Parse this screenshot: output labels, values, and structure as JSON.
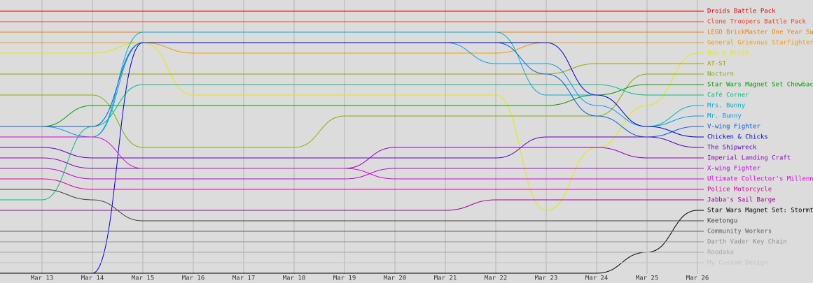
{
  "chart_data": {
    "type": "bump",
    "categories": [
      "Mar 13",
      "Mar 14",
      "Mar 15",
      "Mar 16",
      "Mar 17",
      "Mar 18",
      "Mar 19",
      "Mar 20",
      "Mar 21",
      "Mar 22",
      "Mar 23",
      "Mar 24",
      "Mar 25",
      "Mar 26"
    ],
    "ylim": [
      0,
      26
    ],
    "y_inverted": true,
    "grid": true,
    "series": [
      {
        "name": "Droids Battle Pack",
        "color": "#e00000",
        "values": [
          1,
          1,
          1,
          1,
          1,
          1,
          1,
          1,
          1,
          1,
          1,
          1,
          1,
          1
        ]
      },
      {
        "name": "Clone Troopers Battle Pack",
        "color": "#f04020",
        "values": [
          2,
          2,
          2,
          2,
          2,
          2,
          2,
          2,
          2,
          2,
          2,
          2,
          2,
          2
        ]
      },
      {
        "name": "LEGO BrickMaster One Year Subs",
        "color": "#f08000",
        "values": [
          3,
          3,
          3,
          3,
          3,
          3,
          3,
          3,
          3,
          3,
          3,
          3,
          3,
          3
        ]
      },
      {
        "name": "General Grievous Starfighter",
        "color": "#f0a000",
        "values": [
          4,
          4,
          4,
          5,
          5,
          5,
          5,
          5,
          5,
          5,
          4,
          4,
          4,
          4
        ]
      },
      {
        "name": "Bob & Brick",
        "color": "#e8e800",
        "values": [
          5,
          5,
          4,
          9,
          9,
          9,
          9,
          9,
          9,
          9,
          20,
          14,
          10,
          5
        ]
      },
      {
        "name": "AT-ST",
        "color": "#a0a000",
        "values": [
          7,
          7,
          7,
          7,
          7,
          7,
          7,
          7,
          7,
          7,
          7,
          6,
          6,
          6
        ]
      },
      {
        "name": "Nocturn",
        "color": "#80b000",
        "values": [
          9,
          9,
          14,
          14,
          14,
          14,
          11,
          11,
          11,
          11,
          11,
          11,
          7,
          7
        ]
      },
      {
        "name": "Star Wars Magnet Set Chewbacca",
        "color": "#00a000",
        "values": [
          12,
          10,
          10,
          10,
          10,
          10,
          10,
          10,
          10,
          10,
          10,
          9,
          8,
          8
        ]
      },
      {
        "name": "Café Corner",
        "color": "#00c080",
        "values": [
          19,
          12,
          8,
          8,
          8,
          8,
          8,
          8,
          8,
          8,
          8,
          8,
          9,
          9
        ]
      },
      {
        "name": "Mrs. Bunny",
        "color": "#00b0d0",
        "values": [
          13,
          13,
          3,
          3,
          3,
          3,
          3,
          3,
          3,
          3,
          9,
          9,
          12,
          10
        ]
      },
      {
        "name": "Mr. Bunny",
        "color": "#00a0f0",
        "values": [
          12,
          13,
          4,
          4,
          4,
          4,
          4,
          4,
          4,
          6,
          6,
          10,
          12,
          11
        ]
      },
      {
        "name": "V-wing Fighter",
        "color": "#0060e0",
        "values": [
          12,
          12,
          4,
          4,
          4,
          4,
          4,
          4,
          4,
          4,
          7,
          11,
          13,
          12
        ]
      },
      {
        "name": "Chicken & Chicks",
        "color": "#0000e0",
        "values": [
          26,
          26,
          4,
          4,
          4,
          4,
          4,
          4,
          4,
          4,
          4,
          9,
          12,
          13
        ]
      },
      {
        "name": "The Shipwreck",
        "color": "#6000c0",
        "values": [
          14,
          15,
          15,
          15,
          15,
          15,
          15,
          15,
          15,
          15,
          13,
          13,
          13,
          14
        ]
      },
      {
        "name": "Imperial Landing Craft",
        "color": "#9000c0",
        "values": [
          15,
          16,
          16,
          16,
          16,
          16,
          16,
          14,
          14,
          14,
          14,
          14,
          15,
          15
        ]
      },
      {
        "name": "X-wing Fighter",
        "color": "#c000e0",
        "values": [
          16,
          17,
          17,
          17,
          17,
          17,
          17,
          16,
          16,
          16,
          16,
          16,
          16,
          16
        ]
      },
      {
        "name": "Ultimate Collector's Millenniu",
        "color": "#e000e0",
        "values": [
          13,
          13,
          16,
          16,
          16,
          16,
          16,
          17,
          17,
          17,
          17,
          17,
          17,
          17
        ]
      },
      {
        "name": "Police Motorcycle",
        "color": "#e000a0",
        "values": [
          17,
          18,
          18,
          18,
          18,
          18,
          18,
          18,
          18,
          18,
          18,
          18,
          18,
          18
        ]
      },
      {
        "name": "Jabba's Sail Barge",
        "color": "#a000a0",
        "values": [
          20,
          20,
          20,
          20,
          20,
          20,
          20,
          20,
          20,
          19,
          19,
          19,
          19,
          19
        ]
      },
      {
        "name": "Star Wars Magnet Set: Stormtro",
        "color": "#000000",
        "values": [
          26,
          26,
          26,
          26,
          26,
          26,
          26,
          26,
          26,
          26,
          26,
          26,
          24,
          20
        ]
      },
      {
        "name": "Keetongu",
        "color": "#404040",
        "values": [
          18,
          19,
          21,
          21,
          21,
          21,
          21,
          21,
          21,
          21,
          21,
          21,
          21,
          21
        ]
      },
      {
        "name": "Community Workers",
        "color": "#606060",
        "values": [
          22,
          22,
          22,
          22,
          22,
          22,
          22,
          22,
          22,
          22,
          22,
          22,
          22,
          22
        ]
      },
      {
        "name": "Darth Vader Key Chain",
        "color": "#909090",
        "values": [
          23,
          23,
          23,
          23,
          23,
          23,
          23,
          23,
          23,
          23,
          23,
          23,
          23,
          23
        ]
      },
      {
        "name": "Roodaka",
        "color": "#a8a8a8",
        "values": [
          24,
          24,
          24,
          24,
          24,
          24,
          24,
          24,
          24,
          24,
          24,
          24,
          24,
          24
        ]
      },
      {
        "name": "My Custom Design",
        "color": "#c4c4c4",
        "values": [
          25,
          25,
          25,
          25,
          25,
          25,
          25,
          25,
          25,
          25,
          25,
          25,
          25,
          25
        ]
      }
    ]
  }
}
